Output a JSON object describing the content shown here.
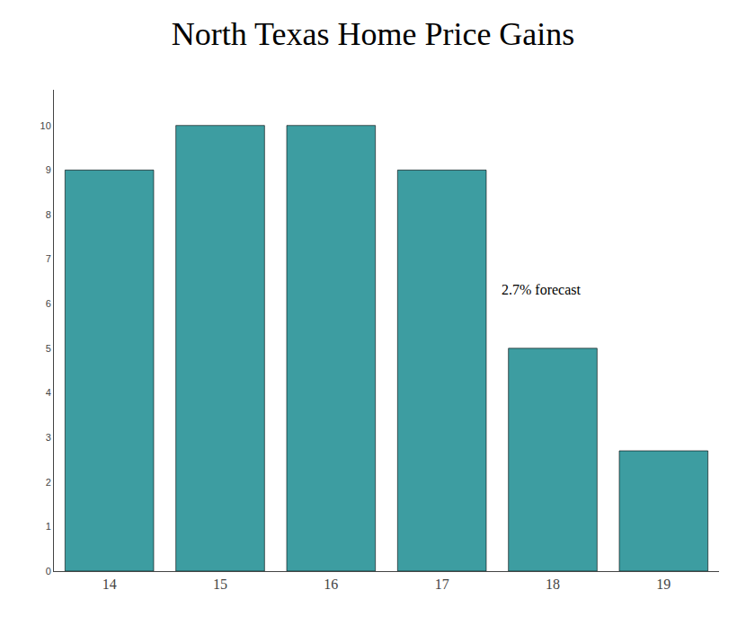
{
  "chart_data": {
    "type": "bar",
    "title": "North Texas Home Price Gains",
    "categories": [
      "14",
      "15",
      "16",
      "17",
      "18",
      "19"
    ],
    "values": [
      9.0,
      10.0,
      10.0,
      9.0,
      5.0,
      2.7
    ],
    "color": "#3d9da1",
    "annotation": "2.7% forecast",
    "ylim": [
      0,
      10.8
    ],
    "yticks": [
      0,
      1,
      2,
      3,
      4,
      5,
      6,
      7,
      8,
      9,
      10
    ],
    "grid": false
  }
}
